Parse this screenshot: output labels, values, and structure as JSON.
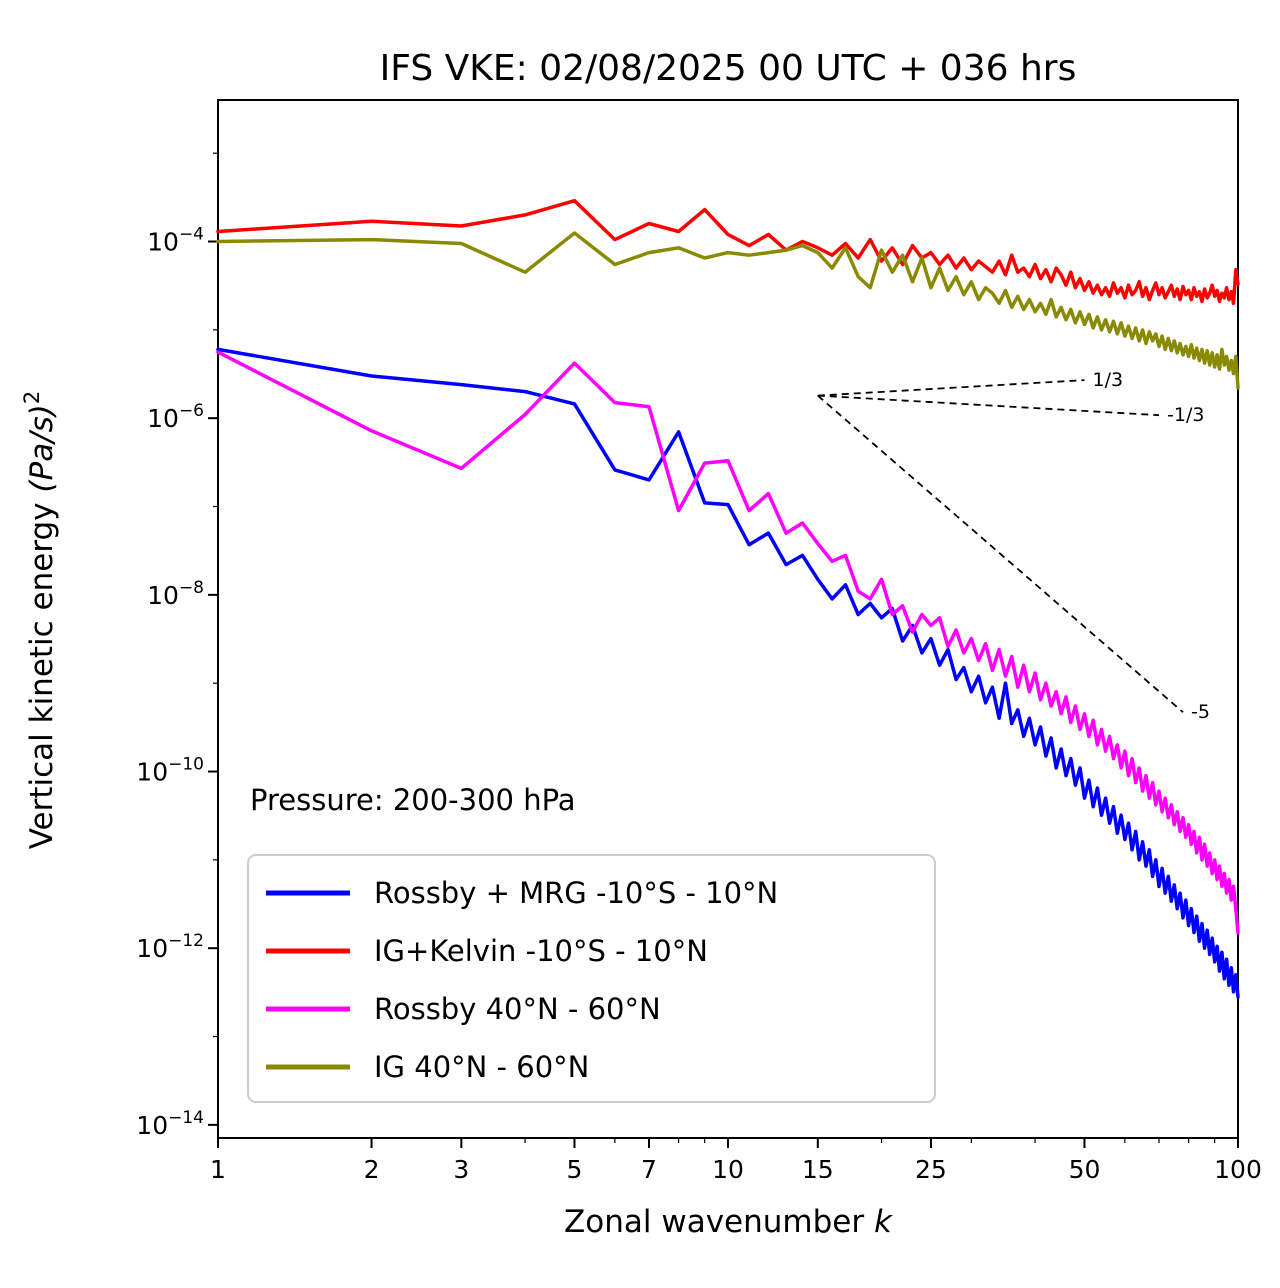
{
  "chart_data": {
    "type": "line",
    "title": "IFS VKE: 02/08/2025 00 UTC + 036 hrs",
    "xlabel": {
      "text": "Zonal wavenumber ",
      "var": "k"
    },
    "ylabel": {
      "text": "Vertical kinetic energy ",
      "units": "(Pa/s)",
      "exponent": "2"
    },
    "annotation": "Pressure: 200-300 hPa",
    "x_scale": "log",
    "y_scale": "log",
    "xlim": [
      1,
      100
    ],
    "ylim": [
      7.1e-15,
      0.004
    ],
    "x_ticks": [
      1,
      2,
      3,
      5,
      7,
      10,
      15,
      25,
      50,
      100
    ],
    "x_minor_ticks": [
      4,
      6,
      8,
      9,
      20,
      30,
      40,
      60,
      70,
      80,
      90
    ],
    "y_tick_exponents": [
      -4,
      -6,
      -8,
      -10,
      -12,
      -14
    ],
    "y_minor_tick_exponents": [
      -3,
      -5,
      -7,
      -9,
      -11,
      -13
    ],
    "grid": false,
    "legend_position": "lower left",
    "x": [
      1,
      2,
      3,
      4,
      5,
      6,
      7,
      8,
      9,
      10,
      11,
      12,
      13,
      14,
      15,
      16,
      17,
      18,
      19,
      20,
      21,
      22,
      23,
      24,
      25,
      26,
      27,
      28,
      29,
      30,
      31,
      32,
      33,
      34,
      35,
      36,
      37,
      38,
      39,
      40,
      41,
      42,
      43,
      44,
      45,
      46,
      47,
      48,
      49,
      50,
      51,
      52,
      53,
      54,
      55,
      56,
      57,
      58,
      59,
      60,
      61,
      62,
      63,
      64,
      65,
      66,
      67,
      68,
      69,
      70,
      71,
      72,
      73,
      74,
      75,
      76,
      77,
      78,
      79,
      80,
      81,
      82,
      83,
      84,
      85,
      86,
      87,
      88,
      89,
      90,
      91,
      92,
      93,
      94,
      95,
      96,
      97,
      98,
      99,
      100
    ],
    "series": [
      {
        "name": "Rossby + MRG -10°S - 10°N",
        "color": "#0000ff",
        "values": [
          6e-06,
          3e-06,
          2.4e-06,
          2e-06,
          1.45e-06,
          2.6e-07,
          2e-07,
          7e-07,
          1.1e-07,
          1.05e-07,
          3.7e-08,
          5e-08,
          2.2e-08,
          2.8e-08,
          1.5e-08,
          9e-09,
          1.3e-08,
          6e-09,
          8e-09,
          5.5e-09,
          7e-09,
          3e-09,
          4.5e-09,
          2.2e-09,
          3.2e-09,
          1.6e-09,
          2.4e-09,
          1.1e-09,
          1.5e-09,
          8e-10,
          1.2e-09,
          6e-10,
          9e-10,
          4e-10,
          1e-09,
          3.5e-10,
          5e-10,
          2.5e-10,
          4e-10,
          2e-10,
          3.2e-10,
          1.5e-10,
          2.4e-10,
          1.1e-10,
          1.8e-10,
          9e-11,
          1.4e-10,
          7e-11,
          1.1e-10,
          5e-11,
          8e-11,
          4e-11,
          6.5e-11,
          3.2e-11,
          5e-11,
          2.6e-11,
          4e-11,
          2e-11,
          3.2e-11,
          1.7e-11,
          2.6e-11,
          1.3e-11,
          2.1e-11,
          1e-11,
          1.6e-11,
          8.5e-12,
          1.3e-11,
          6.5e-12,
          1e-11,
          5e-12,
          8e-12,
          4.2e-12,
          6.5e-12,
          3.4e-12,
          5.2e-12,
          2.8e-12,
          4.2e-12,
          2.2e-12,
          3.5e-12,
          1.8e-12,
          2.8e-12,
          1.5e-12,
          2.3e-12,
          1.2e-12,
          1.9e-12,
          1e-12,
          1.6e-12,
          8.5e-13,
          1.3e-12,
          7e-13,
          1.05e-12,
          5.5e-13,
          9e-13,
          4.5e-13,
          7.5e-13,
          3.8e-13,
          6e-13,
          3.2e-13,
          5e-13,
          2.8e-13
        ]
      },
      {
        "name": "IG+Kelvin -10°S - 10°N",
        "color": "#ff0000",
        "values": [
          0.00013,
          0.00017,
          0.00015,
          0.0002,
          0.00029,
          0.000105,
          0.00016,
          0.00013,
          0.00023,
          0.00012,
          9e-05,
          0.00012,
          8e-05,
          0.0001,
          8.5e-05,
          7e-05,
          9.5e-05,
          6.5e-05,
          0.000105,
          6e-05,
          8.5e-05,
          5.5e-05,
          9e-05,
          6.5e-05,
          7.5e-05,
          5.5e-05,
          7e-05,
          5e-05,
          6.5e-05,
          4.8e-05,
          6e-05,
          5.2e-05,
          4.5e-05,
          6e-05,
          4.2e-05,
          7e-05,
          4.5e-05,
          5e-05,
          4e-05,
          5.5e-05,
          3.8e-05,
          4.8e-05,
          3.5e-05,
          5e-05,
          4.2e-05,
          3.2e-05,
          4.5e-05,
          3e-05,
          3.8e-05,
          2.8e-05,
          3.5e-05,
          2.6e-05,
          3.2e-05,
          2.5e-05,
          3e-05,
          2.4e-05,
          3.4e-05,
          2.6e-05,
          3e-05,
          2.3e-05,
          3.2e-05,
          2.5e-05,
          2.8e-05,
          3.5e-05,
          2.4e-05,
          3e-05,
          2.2e-05,
          2.8e-05,
          3.4e-05,
          2.5e-05,
          3e-05,
          2.3e-05,
          2.7e-05,
          3.2e-05,
          2.4e-05,
          2.9e-05,
          2.2e-05,
          3.1e-05,
          2.5e-05,
          2.8e-05,
          2.2e-05,
          3e-05,
          2.4e-05,
          2.7e-05,
          2.1e-05,
          2.9e-05,
          2.3e-05,
          2.6e-05,
          3.2e-05,
          2.4e-05,
          2.8e-05,
          2.1e-05,
          2.6e-05,
          2.3e-05,
          3e-05,
          2.2e-05,
          2.7e-05,
          2e-05,
          4.8e-05,
          3.3e-05
        ]
      },
      {
        "name": "Rossby 40°N - 60°N",
        "color": "#ff00ff",
        "values": [
          5.6e-06,
          7.2e-07,
          2.7e-07,
          1.1e-06,
          4.2e-06,
          1.5e-06,
          1.35e-06,
          9e-08,
          3.1e-07,
          3.3e-07,
          9e-08,
          1.4e-07,
          5e-08,
          6.5e-08,
          3.8e-08,
          2.4e-08,
          2.8e-08,
          1.1e-08,
          9e-09,
          1.5e-08,
          6e-09,
          7.5e-09,
          3.8e-09,
          6e-09,
          4.5e-09,
          5.5e-09,
          2.6e-09,
          4e-09,
          2.2e-09,
          3.2e-09,
          1.8e-09,
          2.8e-09,
          1.4e-09,
          2.4e-09,
          1.2e-09,
          2e-09,
          9e-10,
          1.6e-09,
          8e-10,
          1.3e-09,
          6.5e-10,
          1e-09,
          5.5e-10,
          8e-10,
          4.5e-10,
          7e-10,
          3.6e-10,
          5.5e-10,
          3e-10,
          4.5e-10,
          2.5e-10,
          3.8e-10,
          2e-10,
          3e-10,
          1.7e-10,
          2.5e-10,
          1.4e-10,
          2e-10,
          1.1e-10,
          1.7e-10,
          9e-11,
          1.4e-10,
          7.5e-11,
          1.1e-10,
          6e-11,
          9e-11,
          5e-11,
          7.5e-11,
          4.2e-11,
          6e-11,
          3.5e-11,
          5e-11,
          3e-11,
          4.2e-11,
          2.5e-11,
          3.5e-11,
          2.1e-11,
          3e-11,
          1.8e-11,
          2.5e-11,
          1.5e-11,
          2.1e-11,
          1.2e-11,
          1.8e-11,
          1e-11,
          1.5e-11,
          8.5e-12,
          1.2e-11,
          7e-12,
          1e-11,
          6e-12,
          8.5e-12,
          5e-12,
          7e-12,
          4.2e-12,
          6e-12,
          3.5e-12,
          5e-12,
          2.8e-12,
          1.5e-12
        ]
      },
      {
        "name": "IG 40°N - 60°N",
        "color": "#8a8a00",
        "values": [
          0.0001,
          0.000105,
          9.5e-05,
          4.5e-05,
          0.000125,
          5.5e-05,
          7.5e-05,
          8.5e-05,
          6.5e-05,
          7.5e-05,
          7e-05,
          7.5e-05,
          8e-05,
          9e-05,
          7.5e-05,
          5e-05,
          8.5e-05,
          4e-05,
          3e-05,
          8e-05,
          4.5e-05,
          7e-05,
          3.5e-05,
          6.5e-05,
          3e-05,
          5e-05,
          2.8e-05,
          4e-05,
          2.5e-05,
          3.5e-05,
          2.2e-05,
          3e-05,
          2.6e-05,
          2e-05,
          2.8e-05,
          1.8e-05,
          2.4e-05,
          1.7e-05,
          2.2e-05,
          1.6e-05,
          2e-05,
          1.5e-05,
          2.2e-05,
          1.4e-05,
          1.8e-05,
          1.3e-05,
          1.7e-05,
          1.2e-05,
          1.6e-05,
          1.15e-05,
          1.5e-05,
          1.05e-05,
          1.4e-05,
          1e-05,
          1.3e-05,
          9.5e-06,
          1.25e-05,
          9e-06,
          1.2e-05,
          8.5e-06,
          1.1e-05,
          8e-06,
          1.05e-05,
          7.5e-06,
          1e-05,
          7e-06,
          9.5e-06,
          7.5e-06,
          9e-06,
          6.5e-06,
          8.5e-06,
          6e-06,
          8e-06,
          5.8e-06,
          7.5e-06,
          5.5e-06,
          7e-06,
          5.2e-06,
          6.5e-06,
          5e-06,
          6.8e-06,
          4.8e-06,
          6.2e-06,
          4.5e-06,
          6e-06,
          4.2e-06,
          5.8e-06,
          4e-06,
          5.5e-06,
          3.8e-06,
          5.2e-06,
          3.6e-06,
          6e-06,
          4e-06,
          5e-06,
          3.5e-06,
          4.5e-06,
          3.2e-06,
          5e-06,
          2.2e-06
        ]
      }
    ],
    "reference_lines": [
      {
        "label": "1/3",
        "x": [
          15,
          50
        ],
        "y": [
          1.8e-06,
          2.7e-06
        ]
      },
      {
        "label": "-1/3",
        "x": [
          15,
          70
        ],
        "y": [
          1.8e-06,
          1.08e-06
        ]
      },
      {
        "label": "-5",
        "x": [
          15,
          78
        ],
        "y": [
          1.8e-06,
          4.7e-10
        ]
      }
    ]
  }
}
